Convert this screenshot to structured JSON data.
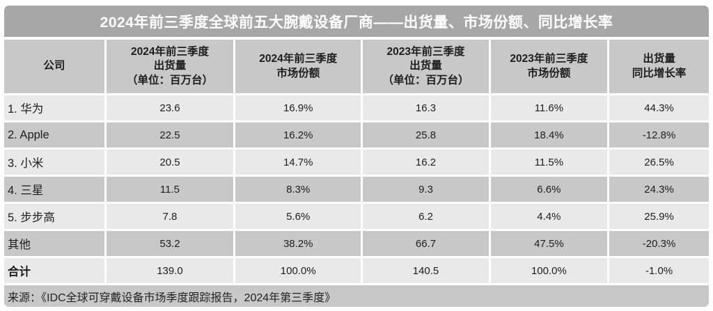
{
  "title": "2024年前三季度全球前五大腕戴设备厂商——出货量、市场份额、同比增长率",
  "source": "来源：《IDC全球可穿戴设备市场季度跟踪报告，2024年第三季度》",
  "colors": {
    "title_bar": "#a7a7a7",
    "header_row": "#c8c8c8",
    "row_light": "#e9e9e9",
    "row_dark": "#c8c8c8",
    "footer_bar": "#c8c8c8",
    "title_text": "#ffffff",
    "body_text": "#1d1d1d"
  },
  "table": {
    "headers": [
      "公司",
      "2024年前三季度\n出货量\n（单位：百万台）",
      "2024年前三季度\n市场份额",
      "2023年前三季度\n出货量\n（单位：百万台）",
      "2023年前三季度\n市场份额",
      "出货量\n同比增长率"
    ],
    "rows": [
      {
        "cells": [
          "1. 华为",
          "23.6",
          "16.9%",
          "16.3",
          "11.6%",
          "44.3%"
        ]
      },
      {
        "cells": [
          "2. Apple",
          "22.5",
          "16.2%",
          "25.8",
          "18.4%",
          "-12.8%"
        ]
      },
      {
        "cells": [
          "3. 小米",
          "20.5",
          "14.7%",
          "16.2",
          "11.5%",
          "26.5%"
        ]
      },
      {
        "cells": [
          "4. 三星",
          "11.5",
          "8.3%",
          "9.3",
          "6.6%",
          "24.3%"
        ]
      },
      {
        "cells": [
          "5. 步步高",
          "7.8",
          "5.6%",
          "6.2",
          "4.4%",
          "25.9%"
        ]
      },
      {
        "cells": [
          "其他",
          "53.2",
          "38.2%",
          "66.7",
          "47.5%",
          "-20.3%"
        ]
      },
      {
        "cells": [
          "合计",
          "139.0",
          "100.0%",
          "140.5",
          "100.0%",
          "-1.0%"
        ]
      }
    ]
  },
  "chart_data": {
    "type": "table",
    "title": "2024年前三季度全球前五大腕戴设备厂商——出货量、市场份额、同比增长率",
    "columns": [
      "公司",
      "2024年前三季度出货量（单位：百万台）",
      "2024年前三季度市场份额",
      "2023年前三季度出货量（单位：百万台）",
      "2023年前三季度市场份额",
      "出货量同比增长率"
    ],
    "rows": [
      [
        "1. 华为",
        23.6,
        "16.9%",
        16.3,
        "11.6%",
        "44.3%"
      ],
      [
        "2. Apple",
        22.5,
        "16.2%",
        25.8,
        "18.4%",
        "-12.8%"
      ],
      [
        "3. 小米",
        20.5,
        "14.7%",
        16.2,
        "11.5%",
        "26.5%"
      ],
      [
        "4. 三星",
        11.5,
        "8.3%",
        9.3,
        "6.6%",
        "24.3%"
      ],
      [
        "5. 步步高",
        7.8,
        "5.6%",
        6.2,
        "4.4%",
        "25.9%"
      ],
      [
        "其他",
        53.2,
        "38.2%",
        66.7,
        "47.5%",
        "-20.3%"
      ],
      [
        "合计",
        139.0,
        "100.0%",
        140.5,
        "100.0%",
        "-1.0%"
      ]
    ],
    "source": "来源：《IDC全球可穿戴设备市场季度跟踪报告，2024年第三季度》"
  }
}
